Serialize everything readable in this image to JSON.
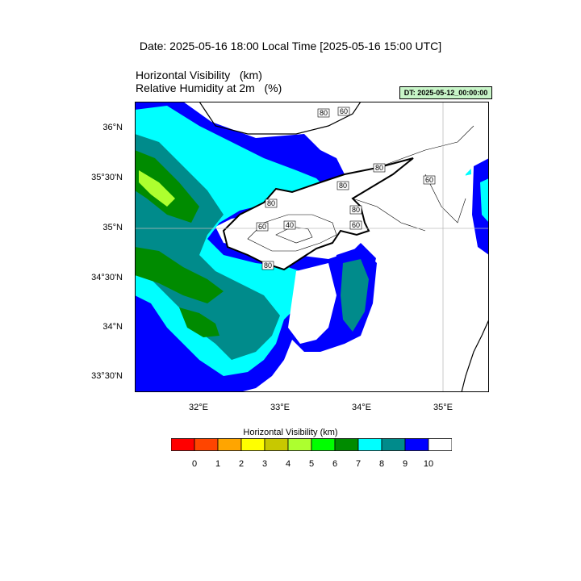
{
  "header": {
    "date_title": "Date: 2025-05-16  18:00 Local Time [2025-05-16  15:00 UTC]",
    "title_visibility": "Horizontal Visibility   (km)",
    "title_humidity": "Relative Humidity at 2m   (%)",
    "dt_badge": "DT: 2025-05-12_00:00:00"
  },
  "map": {
    "lat_ticks": [
      "36°N",
      "35°30'N",
      "35°N",
      "34°30'N",
      "34°N",
      "33°30'N"
    ],
    "lon_ticks": [
      "32°E",
      "33°E",
      "34°E",
      "35°E"
    ],
    "contour_labels": [
      "80",
      "60",
      "80",
      "60",
      "80",
      "80",
      "60",
      "40",
      "60",
      "80",
      "80"
    ]
  },
  "colorbar": {
    "title": "Horizontal Visibility  (km)",
    "colors": [
      "#ff0000",
      "#ff4500",
      "#ffa500",
      "#ffff00",
      "#c8c800",
      "#adff2f",
      "#00ff00",
      "#008b00",
      "#00ffff",
      "#008b8b",
      "#0000ff",
      "#ffffff"
    ],
    "labels": [
      "0",
      "1",
      "2",
      "3",
      "4",
      "5",
      "6",
      "7",
      "8",
      "9",
      "10"
    ]
  }
}
